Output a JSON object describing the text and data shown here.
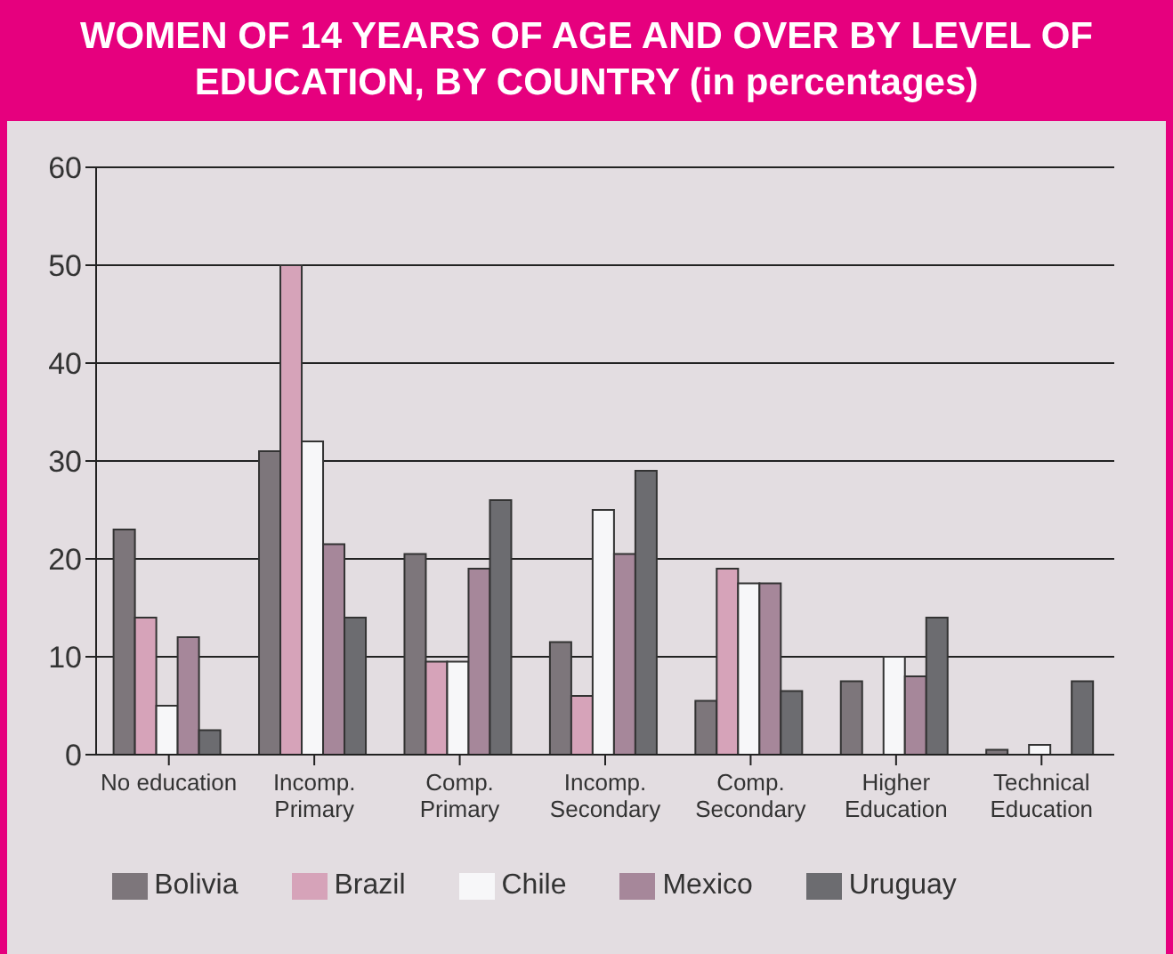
{
  "chart_data": {
    "type": "bar",
    "title": "WOMEN OF 14 YEARS OF AGE AND OVER BY LEVEL OF EDUCATION, BY COUNTRY (in percentages)",
    "categories": [
      "No education",
      "Incomp. Primary",
      "Comp. Primary",
      "Incomp. Secondary",
      "Comp. Secondary",
      "Higher Education",
      "Technical Education"
    ],
    "series": [
      {
        "name": "Bolivia",
        "color": "#7d767b",
        "values": [
          23,
          31,
          20.5,
          11.5,
          5.5,
          7.5,
          0.5
        ]
      },
      {
        "name": "Brazil",
        "color": "#d6a3b9",
        "values": [
          14,
          50,
          9.5,
          6,
          19,
          null,
          null
        ]
      },
      {
        "name": "Chile",
        "color": "#f7f7f9",
        "values": [
          5,
          32,
          9.5,
          25,
          17.5,
          10,
          1
        ]
      },
      {
        "name": "Mexico",
        "color": "#a6879a",
        "values": [
          12,
          21.5,
          19,
          20.5,
          17.5,
          8,
          0
        ]
      },
      {
        "name": "Uruguay",
        "color": "#6c6c70",
        "values": [
          2.5,
          14,
          26,
          29,
          6.5,
          14,
          7.5
        ]
      }
    ],
    "ylim": [
      0,
      60
    ],
    "yticks": [
      0,
      10,
      20,
      30,
      40,
      50,
      60
    ],
    "grid": "y",
    "legend": "bottom"
  }
}
